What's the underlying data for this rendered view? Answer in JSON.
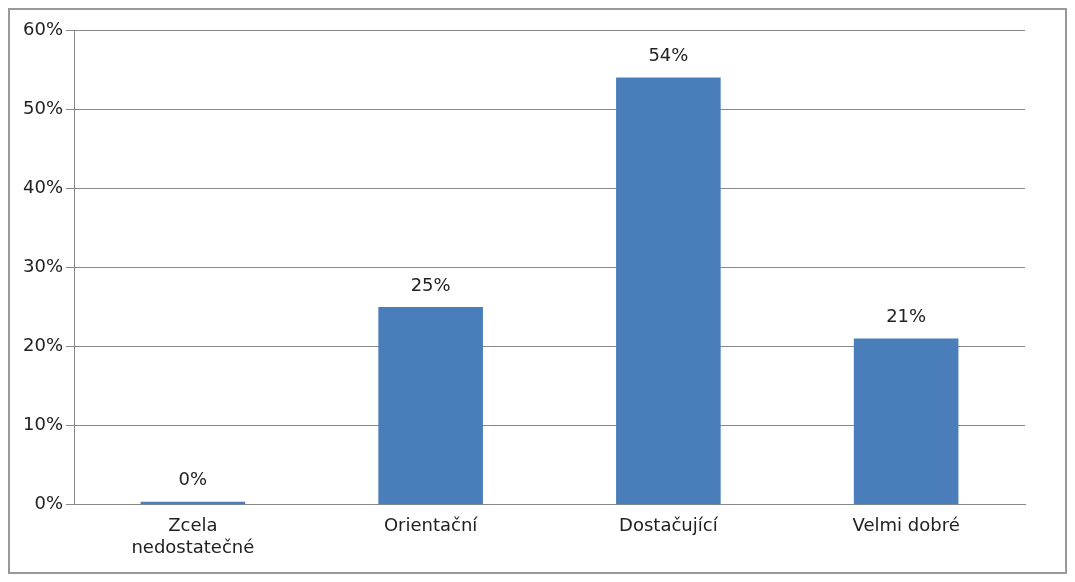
{
  "chart_data": {
    "type": "bar",
    "categories": [
      "Zcela nedostatečné",
      "Orientační",
      "Dostačující",
      "Velmi dobré"
    ],
    "values": [
      0,
      25,
      54,
      21
    ],
    "value_labels": [
      "0%",
      "25%",
      "54%",
      "21%"
    ],
    "color": "#4a7ebb",
    "ylim": [
      0,
      60
    ],
    "yticks": [
      {
        "value": 0,
        "label": "0%"
      },
      {
        "value": 10,
        "label": "10%"
      },
      {
        "value": 20,
        "label": "20%"
      },
      {
        "value": 30,
        "label": "30%"
      },
      {
        "value": 40,
        "label": "40%"
      },
      {
        "value": 50,
        "label": "50%"
      },
      {
        "value": 60,
        "label": "60%"
      }
    ],
    "grid": "y",
    "legend": false
  }
}
